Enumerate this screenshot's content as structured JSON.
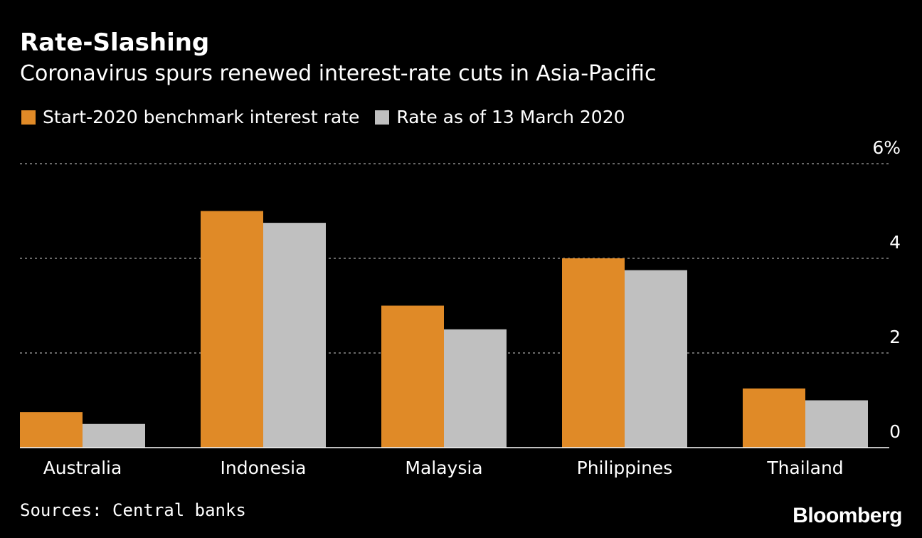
{
  "chart_data": {
    "type": "bar",
    "title": "Rate-Slashing",
    "subtitle": "Coronavirus spurs renewed interest-rate cuts in Asia-Pacific",
    "categories": [
      "Australia",
      "Indonesia",
      "Malaysia",
      "Philippines",
      "Thailand"
    ],
    "series": [
      {
        "name": "Start-2020 benchmark interest rate",
        "color": "#e08a27",
        "values": [
          0.75,
          5.0,
          3.0,
          4.0,
          1.25
        ]
      },
      {
        "name": "Rate as of 13 March 2020",
        "color": "#c0c0c0",
        "values": [
          0.5,
          4.75,
          2.5,
          3.75,
          1.0
        ]
      }
    ],
    "ylim": [
      0,
      6
    ],
    "yticks": [
      {
        "value": 0,
        "label": "0"
      },
      {
        "value": 2,
        "label": "2"
      },
      {
        "value": 4,
        "label": "4"
      },
      {
        "value": 6,
        "label": "6%"
      }
    ],
    "grid": true,
    "xlabel": "",
    "ylabel": "",
    "legend_position": "top-left"
  },
  "footer": {
    "source": "Sources: Central banks",
    "brand": "Bloomberg"
  }
}
